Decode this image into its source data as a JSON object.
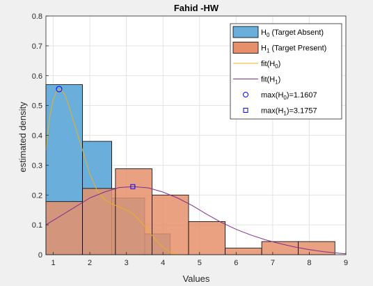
{
  "chart_data": {
    "type": "bar",
    "title": "Fahid -HW",
    "xlabel": "Values",
    "ylabel": "estimated density",
    "xlim": [
      0.8,
      9
    ],
    "ylim": [
      0,
      0.8
    ],
    "xticks": [
      1,
      2,
      3,
      4,
      5,
      6,
      7,
      8,
      9
    ],
    "yticks": [
      0,
      0.1,
      0.2,
      0.3,
      0.4,
      0.5,
      0.6,
      0.7,
      0.8
    ],
    "grid": true,
    "legend_placement": "top-right",
    "colors": {
      "h0_bar": "#6aaedb",
      "h1_bar": "#e5906b",
      "fit_h0": "#edb120",
      "fit_h1": "#7e2f8e",
      "max_h0_marker": "#0000ff",
      "max_h1_marker": "#0000ff"
    },
    "histograms": [
      {
        "series": "h0",
        "bins": [
          {
            "x0": 0.8,
            "x1": 1.8,
            "y": 0.57
          },
          {
            "x0": 1.8,
            "x1": 2.6,
            "y": 0.38
          },
          {
            "x0": 2.6,
            "x1": 3.5,
            "y": 0.19
          },
          {
            "x0": 3.5,
            "x1": 4.2,
            "y": 0.07
          }
        ]
      },
      {
        "series": "h1",
        "bins": [
          {
            "x0": 0.8,
            "x1": 1.8,
            "y": 0.178
          },
          {
            "x0": 1.8,
            "x1": 2.7,
            "y": 0.222
          },
          {
            "x0": 2.7,
            "x1": 3.7,
            "y": 0.288
          },
          {
            "x0": 3.7,
            "x1": 4.7,
            "y": 0.2
          },
          {
            "x0": 4.7,
            "x1": 5.7,
            "y": 0.111
          },
          {
            "x0": 5.7,
            "x1": 6.7,
            "y": 0.022
          },
          {
            "x0": 6.7,
            "x1": 7.7,
            "y": 0.044
          },
          {
            "x0": 7.7,
            "x1": 8.7,
            "y": 0.044
          }
        ]
      }
    ],
    "fits": [
      {
        "series": "fit_h0",
        "x": [
          0.8,
          0.9,
          1.0,
          1.1,
          1.2,
          1.3,
          1.4,
          1.5,
          1.6,
          1.8,
          2.0,
          2.2,
          2.4,
          2.6,
          2.8,
          3.0,
          3.2,
          3.4,
          3.6,
          3.8,
          4.0,
          4.2,
          4.4
        ],
        "y": [
          0.35,
          0.46,
          0.52,
          0.55,
          0.555,
          0.54,
          0.51,
          0.47,
          0.43,
          0.35,
          0.27,
          0.215,
          0.185,
          0.17,
          0.16,
          0.15,
          0.135,
          0.11,
          0.08,
          0.05,
          0.025,
          0.008,
          0.001
        ]
      },
      {
        "series": "fit_h1",
        "x": [
          0.8,
          1.2,
          1.6,
          2.0,
          2.4,
          2.8,
          3.2,
          3.6,
          4.0,
          4.4,
          4.8,
          5.2,
          5.6,
          6.0,
          6.4,
          6.8,
          7.2,
          7.6,
          8.0,
          8.4,
          8.8,
          9.0
        ],
        "y": [
          0.1,
          0.13,
          0.16,
          0.19,
          0.21,
          0.225,
          0.228,
          0.224,
          0.21,
          0.19,
          0.165,
          0.135,
          0.108,
          0.085,
          0.066,
          0.05,
          0.037,
          0.026,
          0.017,
          0.01,
          0.005,
          0.003
        ]
      }
    ],
    "markers": [
      {
        "series": "max_h0",
        "x": 1.1607,
        "y": 0.555,
        "shape": "circle"
      },
      {
        "series": "max_h1",
        "x": 3.1757,
        "y": 0.228,
        "shape": "square"
      }
    ],
    "legend": [
      {
        "key": "h0",
        "kind": "patch",
        "prefix": "H",
        "sub": "0",
        "suffix": " (Target Absent)"
      },
      {
        "key": "h1",
        "kind": "patch",
        "prefix": "H",
        "sub": "1",
        "suffix": " (Target Present)"
      },
      {
        "key": "fit_h0",
        "kind": "line",
        "prefix": "fit(H",
        "sub": "0",
        "suffix": ")"
      },
      {
        "key": "fit_h1",
        "kind": "line",
        "prefix": "fit(H",
        "sub": "1",
        "suffix": ")"
      },
      {
        "key": "max_h0",
        "kind": "circle",
        "prefix": "max(H",
        "sub": "0",
        "suffix": ")=1.1607"
      },
      {
        "key": "max_h1",
        "kind": "square",
        "prefix": "max(H",
        "sub": "1",
        "suffix": ")=3.1757"
      }
    ]
  }
}
